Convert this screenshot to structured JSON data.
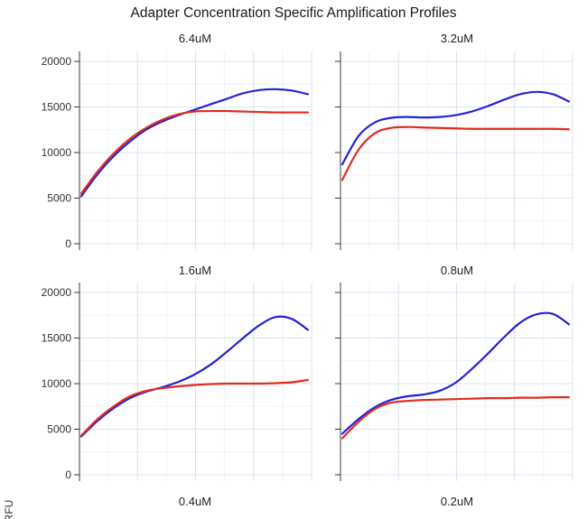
{
  "chart_data": {
    "type": "line",
    "title": "Adapter Concentration Specific Amplification Profiles",
    "xlabel": "",
    "ylabel": "RFU",
    "ylim": [
      0,
      20000
    ],
    "yticks": [
      20000,
      15000,
      10000,
      5000,
      0
    ],
    "grid": true,
    "legend": false,
    "colors": {
      "blue": "#2323d6",
      "red": "#e32b1d",
      "grid_major": "#dbe3f0",
      "grid_minor": "#eef2f8",
      "axis": "#3a3a3a"
    },
    "panels": [
      {
        "label": "6.4uM",
        "series": [
          {
            "name": "blue",
            "color": "#2323d6",
            "values": [
              5200,
              7600,
              9600,
              11200,
              12500,
              13400,
              14100,
              14700,
              15300,
              15900,
              16500,
              16850,
              16950,
              16800,
              16400
            ]
          },
          {
            "name": "red",
            "color": "#e32b1d",
            "values": [
              5500,
              7900,
              9900,
              11500,
              12700,
              13600,
              14200,
              14500,
              14550,
              14550,
              14500,
              14450,
              14400,
              14400,
              14400
            ]
          }
        ]
      },
      {
        "label": "3.2uM",
        "series": [
          {
            "name": "blue",
            "color": "#2323d6",
            "values": [
              8700,
              11800,
              13300,
              13800,
              13900,
              13850,
              13900,
              14100,
              14500,
              15100,
              15800,
              16400,
              16650,
              16400,
              15600
            ]
          },
          {
            "name": "red",
            "color": "#e32b1d",
            "values": [
              7000,
              10300,
              12100,
              12700,
              12800,
              12750,
              12700,
              12650,
              12600,
              12600,
              12600,
              12600,
              12600,
              12600,
              12550
            ]
          }
        ]
      },
      {
        "label": "1.6uM",
        "series": [
          {
            "name": "blue",
            "color": "#2323d6",
            "values": [
              4200,
              5900,
              7300,
              8400,
              9100,
              9600,
              10200,
              11000,
              12100,
              13500,
              15000,
              16400,
              17300,
              17100,
              15900
            ]
          },
          {
            "name": "red",
            "color": "#e32b1d",
            "values": [
              4300,
              6100,
              7500,
              8600,
              9200,
              9500,
              9700,
              9850,
              9950,
              10000,
              10000,
              10000,
              10050,
              10150,
              10400
            ]
          }
        ]
      },
      {
        "label": "0.8uM",
        "series": [
          {
            "name": "blue",
            "color": "#2323d6",
            "values": [
              4500,
              6100,
              7400,
              8200,
              8600,
              8800,
              9200,
              10100,
              11600,
              13300,
              15100,
              16700,
              17600,
              17650,
              16500
            ]
          },
          {
            "name": "red",
            "color": "#e32b1d",
            "values": [
              4000,
              5800,
              7200,
              7900,
              8100,
              8200,
              8250,
              8300,
              8350,
              8400,
              8400,
              8450,
              8450,
              8500,
              8500
            ]
          }
        ]
      },
      {
        "label": "0.4uM",
        "series": [],
        "partial": true
      },
      {
        "label": "0.2uM",
        "series": [],
        "partial": true
      }
    ]
  }
}
